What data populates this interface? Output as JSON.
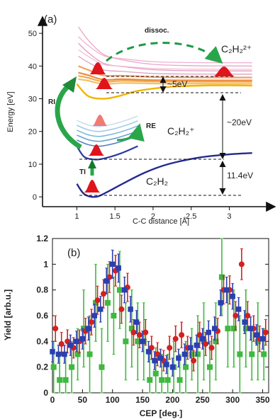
{
  "figure": {
    "panel_a": {
      "label": "(a)",
      "xlabel": "C-C distance [Å]",
      "ylabel": "Energy [eV]",
      "xticks": [
        "1",
        "1.5",
        "2",
        "2.5",
        "3"
      ],
      "yticks": [
        "0",
        "10",
        "20",
        "30",
        "40",
        "50"
      ],
      "species": {
        "neutral": "C₂H₂",
        "cation": "C₂H₂⁺",
        "dication": "C₂H₂²⁺"
      },
      "annotations": {
        "dissoc": "dissoc.",
        "ri": "RI",
        "re": "RE",
        "ti": "TI",
        "gap_5ev": "~5eV",
        "gap_20ev": "~20eV",
        "gap_11ev": "11.4eV"
      }
    },
    "panel_b": {
      "label": "(b)",
      "xlabel": "CEP [deg.]",
      "ylabel": "Yield [arb.u.]"
    }
  },
  "chart_data": [
    {
      "type": "line",
      "xlabel": "C-C distance [Å]",
      "ylabel": "Energy [eV]",
      "xlim": [
        0.55,
        3.6
      ],
      "ylim": [
        -3,
        55
      ],
      "xticks": [
        1,
        1.5,
        2,
        2.5,
        3
      ],
      "yticks": [
        0,
        10,
        20,
        30,
        40,
        50
      ],
      "series": [
        {
          "name": "C₂H₂",
          "x": [
            1.0,
            1.1,
            1.25,
            1.4,
            1.6,
            1.9,
            2.2,
            2.6,
            3.0,
            3.3
          ],
          "y": [
            4.0,
            0.8,
            0.0,
            1.5,
            4.0,
            7.5,
            10.0,
            12.0,
            13.0,
            13.4
          ]
        },
        {
          "name": "C₂H₂⁺",
          "x": [
            1.0,
            1.1,
            1.25,
            1.4,
            1.6,
            1.8
          ],
          "y": [
            15.5,
            12.2,
            11.4,
            12.0,
            13.5,
            15.5
          ]
        },
        {
          "name": "C₂H₂²⁺",
          "x": [
            1.0,
            1.15,
            1.35,
            1.55,
            1.8,
            2.2,
            2.6,
            3.0,
            3.3
          ],
          "y": [
            34.5,
            30.8,
            30.0,
            30.8,
            32.4,
            33.6,
            34.0,
            34.1,
            34.0
          ]
        }
      ]
    },
    {
      "type": "scatter",
      "xlabel": "CEP [deg.]",
      "ylabel": "Yield [arb.u.]",
      "xlim": [
        0,
        360
      ],
      "ylim": [
        0,
        1.2
      ],
      "xticks": [
        0,
        50,
        100,
        150,
        200,
        250,
        300,
        350
      ],
      "yticks": [
        0,
        0.2,
        0.4,
        0.6,
        0.8,
        1,
        1.2
      ],
      "series": [
        {
          "color": "#2a3fb0",
          "marker": "square",
          "x": [
            0,
            10,
            20,
            30,
            40,
            50,
            60,
            70,
            80,
            90,
            100,
            110,
            120,
            130,
            140,
            150,
            160,
            170,
            180,
            190,
            200,
            210,
            220,
            230,
            240,
            250,
            260,
            270,
            280,
            290,
            300,
            310,
            320,
            330,
            340,
            350
          ],
          "y": [
            0.32,
            0.3,
            0.3,
            0.37,
            0.4,
            0.42,
            0.5,
            0.6,
            0.65,
            0.87,
            1.0,
            0.97,
            0.8,
            0.65,
            0.55,
            0.4,
            0.32,
            0.25,
            0.27,
            0.22,
            0.2,
            0.27,
            0.3,
            0.35,
            0.37,
            0.42,
            0.47,
            0.5,
            0.7,
            0.8,
            0.75,
            0.65,
            0.55,
            0.5,
            0.45,
            0.42
          ],
          "err": [
            0.08,
            0.07,
            0.07,
            0.08,
            0.08,
            0.08,
            0.09,
            0.09,
            0.1,
            0.1,
            0.11,
            0.11,
            0.1,
            0.1,
            0.09,
            0.08,
            0.08,
            0.07,
            0.07,
            0.07,
            0.07,
            0.07,
            0.08,
            0.08,
            0.08,
            0.08,
            0.09,
            0.09,
            0.1,
            0.1,
            0.1,
            0.09,
            0.09,
            0.09,
            0.08,
            0.08
          ]
        },
        {
          "color": "#d42020",
          "marker": "circle",
          "x": [
            5,
            15,
            25,
            35,
            45,
            55,
            65,
            75,
            85,
            95,
            105,
            115,
            125,
            135,
            145,
            155,
            165,
            175,
            185,
            195,
            205,
            215,
            225,
            235,
            245,
            255,
            265,
            275,
            285,
            295,
            305,
            315,
            325,
            335,
            345,
            355
          ],
          "y": [
            0.5,
            0.38,
            0.4,
            0.35,
            0.4,
            0.48,
            0.55,
            0.72,
            0.77,
            0.9,
            0.95,
            0.65,
            0.82,
            0.47,
            0.45,
            0.47,
            0.35,
            0.3,
            0.25,
            0.35,
            0.42,
            0.45,
            0.35,
            0.25,
            0.45,
            0.38,
            0.35,
            0.48,
            0.8,
            0.8,
            0.6,
            1.0,
            0.6,
            0.5,
            0.42,
            0.47
          ],
          "err": [
            0.1,
            0.09,
            0.09,
            0.08,
            0.09,
            0.1,
            0.1,
            0.11,
            0.11,
            0.12,
            0.12,
            0.11,
            0.11,
            0.1,
            0.1,
            0.1,
            0.09,
            0.09,
            0.08,
            0.09,
            0.1,
            0.1,
            0.09,
            0.08,
            0.1,
            0.09,
            0.09,
            0.1,
            0.11,
            0.11,
            0.11,
            0.12,
            0.11,
            0.1,
            0.1,
            0.1
          ]
        },
        {
          "color": "#3fb83f",
          "marker": "square",
          "x": [
            2,
            12,
            22,
            32,
            42,
            52,
            62,
            72,
            82,
            92,
            102,
            112,
            122,
            132,
            142,
            152,
            162,
            172,
            182,
            192,
            202,
            212,
            222,
            232,
            242,
            252,
            262,
            272,
            282,
            292,
            302,
            312,
            322,
            332,
            342,
            352
          ],
          "y": [
            0.2,
            0.1,
            0.1,
            0.2,
            0.3,
            0.5,
            0.3,
            0.7,
            0.2,
            0.7,
            0.6,
            0.8,
            0.4,
            0.5,
            0.4,
            0.4,
            0.1,
            0.15,
            0.1,
            0.1,
            0.2,
            0.1,
            0.2,
            0.3,
            0.3,
            0.4,
            0.2,
            0.4,
            0.9,
            0.5,
            0.5,
            0.3,
            0.5,
            0.3,
            0.4,
            0.3
          ],
          "err": [
            0.2,
            0.2,
            0.2,
            0.2,
            0.2,
            0.3,
            0.3,
            0.3,
            0.3,
            0.3,
            0.3,
            0.3,
            0.3,
            0.3,
            0.3,
            0.3,
            0.2,
            0.2,
            0.2,
            0.2,
            0.2,
            0.2,
            0.2,
            0.2,
            0.3,
            0.3,
            0.2,
            0.3,
            0.3,
            0.3,
            0.3,
            0.3,
            0.3,
            0.2,
            0.3,
            0.2
          ]
        }
      ]
    }
  ]
}
